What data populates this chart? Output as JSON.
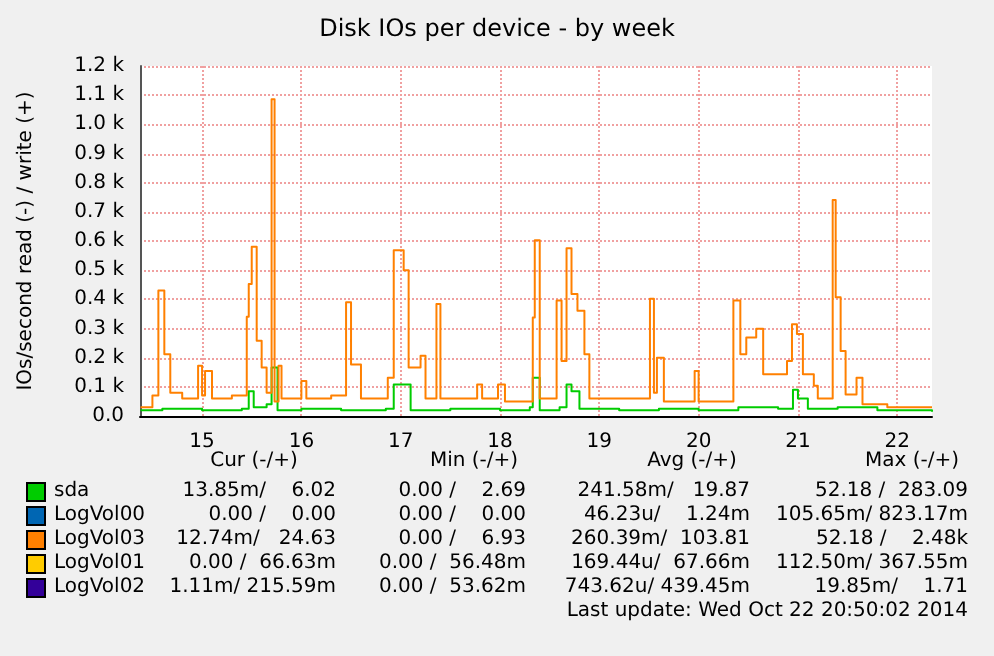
{
  "chart_data": {
    "type": "step",
    "title": "Disk IOs per device - by week",
    "ylabel": "IOs/second read (-) / write (+)",
    "xlim": [
      14.375,
      22.35
    ],
    "xticks": [
      15,
      16,
      17,
      18,
      19,
      20,
      21,
      22
    ],
    "ylim": [
      0,
      1200
    ],
    "yticks": [
      {
        "value": 0,
        "label": "0.0"
      },
      {
        "value": 100,
        "label": "0.1 k"
      },
      {
        "value": 200,
        "label": "0.2 k"
      },
      {
        "value": 300,
        "label": "0.3 k"
      },
      {
        "value": 400,
        "label": "0.4 k"
      },
      {
        "value": 500,
        "label": "0.5 k"
      },
      {
        "value": 600,
        "label": "0.6 k"
      },
      {
        "value": 700,
        "label": "0.7 k"
      },
      {
        "value": 800,
        "label": "0.8 k"
      },
      {
        "value": 900,
        "label": "0.9 k"
      },
      {
        "value": 1000,
        "label": "1.0 k"
      },
      {
        "value": 1100,
        "label": "1.1 k"
      },
      {
        "value": 1200,
        "label": "1.2 k"
      }
    ],
    "grid": true,
    "legend": "bottom",
    "series": [
      {
        "name": "sda",
        "color": "#00cc00",
        "x": [
          14.38,
          14.6,
          15.0,
          15.4,
          15.47,
          15.52,
          15.65,
          15.7,
          15.76,
          16.0,
          16.4,
          16.85,
          16.93,
          17.05,
          17.1,
          17.5,
          18.0,
          18.3,
          18.33,
          18.4,
          18.6,
          18.67,
          18.72,
          18.8,
          19.2,
          19.6,
          20.0,
          20.4,
          20.8,
          20.95,
          21.0,
          21.1,
          21.4,
          21.8,
          22.35
        ],
        "values": [
          20,
          25,
          20,
          25,
          85,
          30,
          40,
          166,
          20,
          25,
          20,
          25,
          108,
          108,
          20,
          25,
          20,
          30,
          131,
          20,
          30,
          108,
          85,
          25,
          20,
          25,
          20,
          30,
          25,
          90,
          60,
          25,
          30,
          20,
          15
        ]
      },
      {
        "name": "LogVol00",
        "color": "#0066b3"
      },
      {
        "name": "LogVol03",
        "color": "#ff8000",
        "x": [
          14.38,
          14.5,
          14.56,
          14.62,
          14.68,
          14.8,
          14.96,
          15.0,
          15.03,
          15.1,
          15.3,
          15.45,
          15.47,
          15.5,
          15.55,
          15.6,
          15.65,
          15.7,
          15.73,
          15.77,
          15.8,
          16.0,
          16.05,
          16.3,
          16.45,
          16.5,
          16.6,
          16.87,
          16.93,
          17.03,
          17.08,
          17.2,
          17.25,
          17.36,
          17.4,
          17.77,
          17.82,
          17.98,
          18.05,
          18.33,
          18.35,
          18.4,
          18.57,
          18.62,
          18.67,
          18.72,
          18.78,
          18.85,
          18.9,
          19.2,
          19.51,
          19.55,
          19.58,
          19.65,
          19.96,
          20.0,
          20.35,
          20.42,
          20.48,
          20.58,
          20.65,
          20.89,
          20.94,
          20.99,
          21.05,
          21.16,
          21.2,
          21.35,
          21.38,
          21.43,
          21.48,
          21.59,
          21.65,
          21.9,
          22.15,
          22.35
        ],
        "values": [
          30,
          70,
          430,
          212,
          80,
          60,
          172,
          70,
          154,
          60,
          70,
          340,
          453,
          580,
          258,
          166,
          80,
          1086,
          50,
          172,
          60,
          120,
          60,
          70,
          390,
          177,
          60,
          131,
          568,
          500,
          166,
          207,
          60,
          384,
          60,
          108,
          60,
          108,
          50,
          338,
          603,
          60,
          396,
          189,
          575,
          418,
          361,
          212,
          60,
          60,
          402,
          80,
          200,
          50,
          154,
          50,
          396,
          212,
          269,
          299,
          143,
          189,
          315,
          281,
          143,
          104,
          60,
          741,
          407,
          223,
          74,
          131,
          40,
          30,
          30,
          30
        ]
      },
      {
        "name": "LogVol01",
        "color": "#ffcc00"
      },
      {
        "name": "LogVol02",
        "color": "#330099"
      }
    ],
    "annotations": [
      "Cur (-/+)",
      "Min (-/+)",
      "Avg (-/+)",
      "Max (-/+)",
      "13.85m/    6.02",
      "0.00 /    2.69",
      "241.58m/   19.87",
      "52.18 /  283.09",
      "0.00 /    0.00",
      "0.00 /    0.00",
      "46.23u/    1.24m",
      "105.65m/ 823.17m",
      "12.74m/   24.63",
      "0.00 /    6.93",
      "260.39m/  103.81",
      "52.18 /    2.48k",
      "0.00 /  66.63m",
      "0.00 /  56.48m",
      "169.44u/  67.66m",
      "112.50m/ 367.55m",
      "1.11m/ 215.59m",
      "0.00 /  53.62m",
      "743.62u/ 439.45m",
      "19.85m/    1.71",
      "Last update: Wed Oct 22 20:50:02 2014"
    ]
  }
}
